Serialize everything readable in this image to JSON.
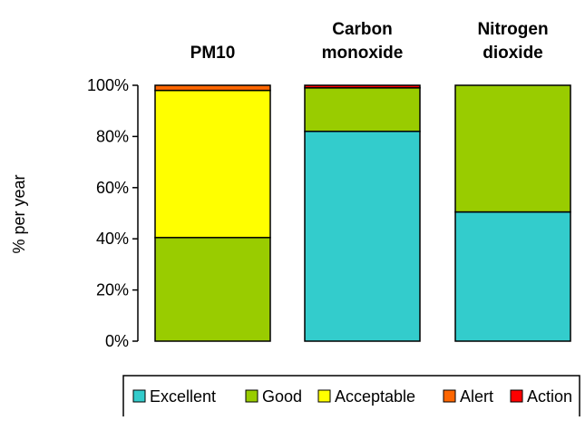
{
  "chart_data": {
    "type": "bar",
    "stacked": true,
    "categories": [
      [
        "PM10"
      ],
      [
        "Carbon",
        "monoxide"
      ],
      [
        "Nitrogen",
        "dioxide"
      ]
    ],
    "series": [
      {
        "name": "Excellent",
        "color": "#33CCCC",
        "values": [
          0,
          82,
          50.5
        ]
      },
      {
        "name": "Good",
        "color": "#99CC00",
        "values": [
          40.5,
          17,
          49.5
        ]
      },
      {
        "name": "Acceptable",
        "color": "#FFFF00",
        "values": [
          57.5,
          0,
          0
        ]
      },
      {
        "name": "Alert",
        "color": "#FF6600",
        "values": [
          2,
          0,
          0
        ]
      },
      {
        "name": "Action",
        "color": "#FF0000",
        "values": [
          0,
          1,
          0
        ]
      }
    ],
    "ylabel": "% per year",
    "ylim": [
      0,
      100
    ],
    "yticks": [
      0,
      20,
      40,
      60,
      80,
      100
    ],
    "ytick_labels": [
      "0%",
      "20%",
      "40%",
      "60%",
      "80%",
      "100%"
    ],
    "grid": false,
    "legend_position": "bottom"
  }
}
